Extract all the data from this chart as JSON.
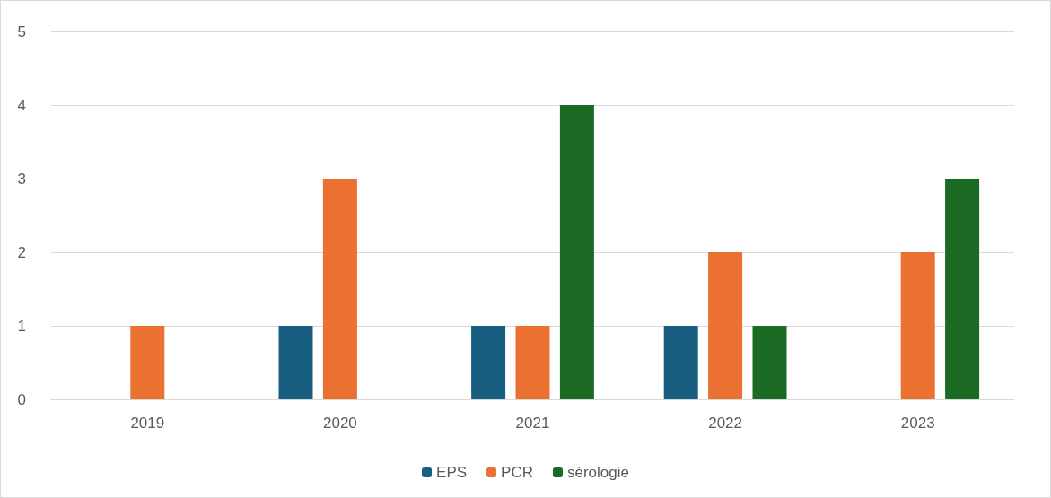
{
  "chart_data": {
    "type": "bar",
    "categories": [
      "2019",
      "2020",
      "2021",
      "2022",
      "2023"
    ],
    "series": [
      {
        "name": "EPS",
        "color": "#175e80",
        "values": [
          null,
          1,
          1,
          1,
          null
        ]
      },
      {
        "name": "PCR",
        "color": "#eb7132",
        "values": [
          1,
          3,
          1,
          2,
          2
        ]
      },
      {
        "name": "sérologie",
        "color": "#1b6b25",
        "values": [
          null,
          null,
          4,
          1,
          3
        ]
      }
    ],
    "ylim": [
      0,
      5
    ],
    "yticks": [
      0,
      1,
      2,
      3,
      4,
      5
    ],
    "grid": "y",
    "legend": "bottom"
  }
}
